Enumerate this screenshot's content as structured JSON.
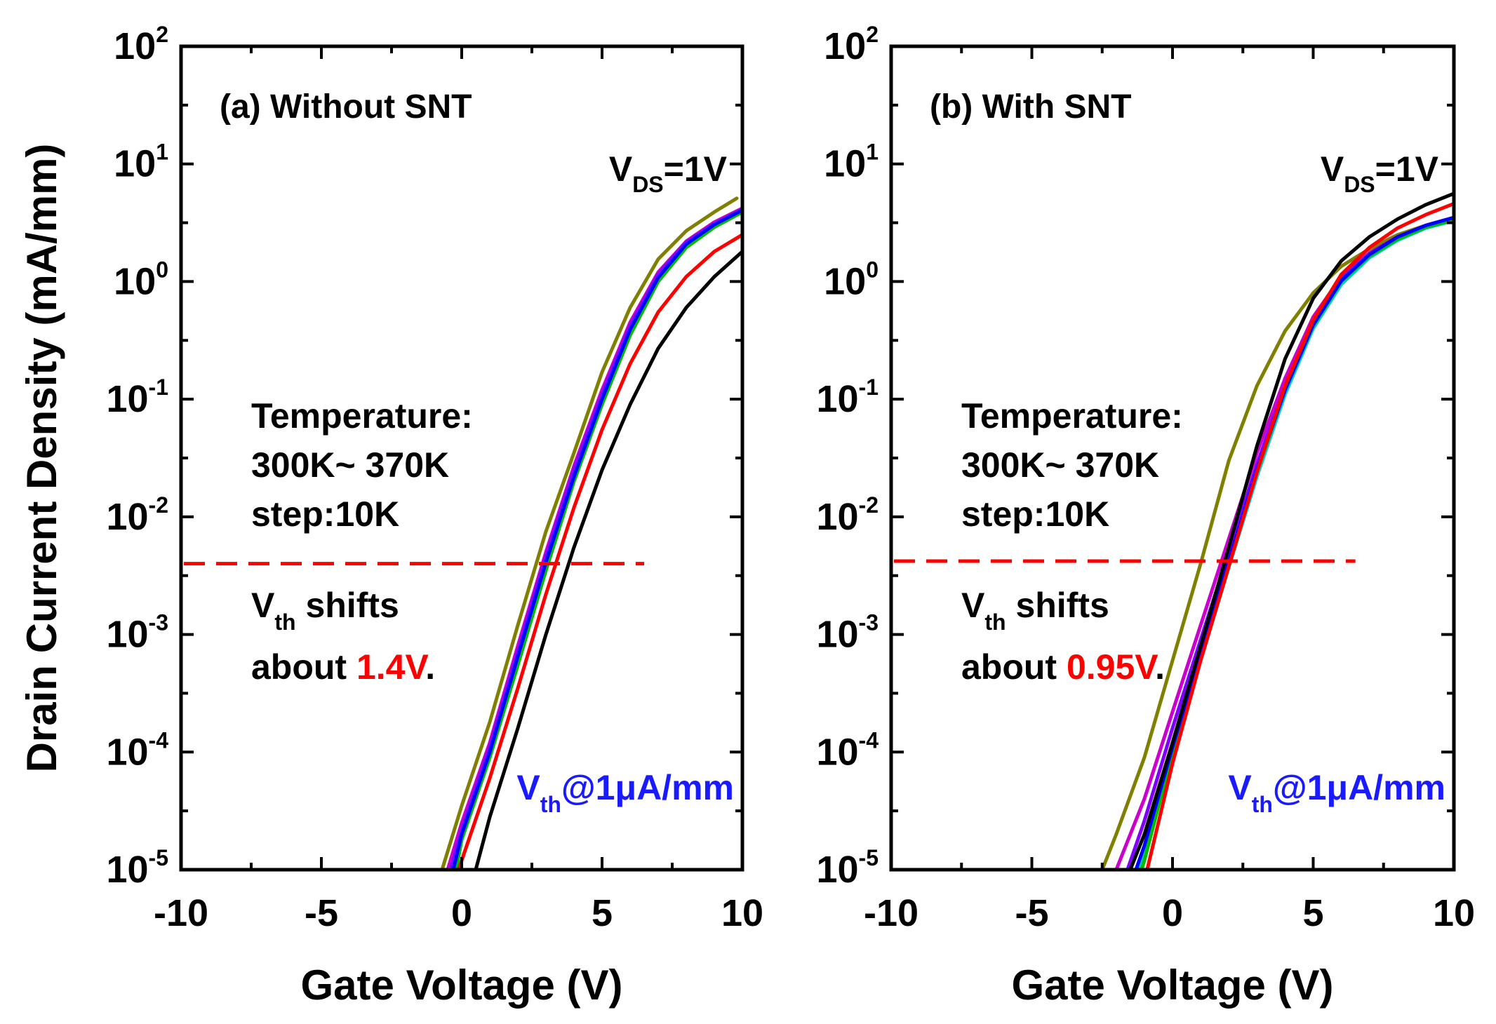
{
  "chart_data": [
    {
      "type": "line",
      "panel": "a",
      "title": "(a) Without SNT",
      "xlabel": "Gate Voltage (V)",
      "ylabel": "Drain Current Density (mA/mm)",
      "xlim": [
        -10,
        10
      ],
      "ylim": [
        1e-05,
        100
      ],
      "yscale": "log",
      "x_ticks": [
        -10,
        -5,
        0,
        5,
        10
      ],
      "y_ticks": [
        {
          "base": "10",
          "exp": "2",
          "value": 100
        },
        {
          "base": "10",
          "exp": "1",
          "value": 10
        },
        {
          "base": "10",
          "exp": "0",
          "value": 1
        },
        {
          "base": "10",
          "exp": "-1",
          "value": 0.1
        },
        {
          "base": "10",
          "exp": "-2",
          "value": 0.01
        },
        {
          "base": "10",
          "exp": "-3",
          "value": 0.001
        },
        {
          "base": "10",
          "exp": "-4",
          "value": 0.0001
        },
        {
          "base": "10",
          "exp": "-5",
          "value": 1e-05
        }
      ],
      "bias_label": {
        "main": "V",
        "sub": "DS",
        "rest": "=1V"
      },
      "temperature_text": [
        "Temperature:",
        "300K~ 370K",
        "step:10K"
      ],
      "vth_shift_text": {
        "v": "V",
        "sub": "th",
        "rest": " shifts",
        "about": "about ",
        "value": "1.4V",
        "end": "."
      },
      "vth_def_text": {
        "v": "V",
        "sub": "th",
        "rest": "@1μA/mm"
      },
      "threshold_line": {
        "y": 0.004,
        "x_range": [
          -10,
          6.5
        ],
        "color": "#ff0000"
      },
      "colors": {
        "annotation_value": "#ff0000",
        "vth_def": "#1a1aff"
      },
      "series": [
        {
          "color": "#808000",
          "x": [
            -0.7,
            0,
            1,
            2,
            3,
            4,
            5,
            6,
            7,
            8,
            9,
            9.8
          ],
          "y": [
            1e-05,
            3.5e-05,
            0.00018,
            0.0012,
            0.0075,
            0.035,
            0.17,
            0.6,
            1.55,
            2.7,
            3.9,
            5.1
          ]
        },
        {
          "color": "#cc00cc",
          "x": [
            -0.5,
            0,
            1,
            2,
            3,
            4,
            5,
            6,
            7,
            8,
            9,
            10
          ],
          "y": [
            1e-05,
            2.5e-05,
            0.00012,
            0.0008,
            0.005,
            0.027,
            0.12,
            0.45,
            1.2,
            2.2,
            3.2,
            4.2
          ]
        },
        {
          "color": "#8000ff",
          "x": [
            -0.4,
            0,
            1,
            2,
            3,
            4,
            5,
            6,
            7,
            8,
            9,
            10
          ],
          "y": [
            1e-05,
            2.2e-05,
            0.00011,
            0.00072,
            0.0046,
            0.025,
            0.11,
            0.42,
            1.15,
            2.15,
            3.1,
            4.1
          ]
        },
        {
          "color": "#00cccc",
          "x": [
            -0.3,
            0,
            1,
            2,
            3,
            4,
            5,
            6,
            7,
            8,
            9,
            10
          ],
          "y": [
            1e-05,
            2e-05,
            9.5e-05,
            0.0006,
            0.0038,
            0.021,
            0.095,
            0.37,
            1.05,
            2.05,
            3.0,
            4.0
          ]
        },
        {
          "color": "#00bb00",
          "x": [
            -0.2,
            0,
            1,
            2,
            3,
            4,
            5,
            6,
            7,
            8,
            9,
            10
          ],
          "y": [
            1e-05,
            1.8e-05,
            9e-05,
            0.00055,
            0.0035,
            0.02,
            0.09,
            0.35,
            1.0,
            1.95,
            2.9,
            3.9
          ]
        },
        {
          "color": "#0000ff",
          "x": [
            -0.3,
            0,
            1,
            2,
            3,
            4,
            5,
            6,
            7,
            8,
            9,
            10
          ],
          "y": [
            1e-05,
            2e-05,
            0.0001,
            0.00065,
            0.0041,
            0.022,
            0.1,
            0.39,
            1.08,
            2.08,
            3.05,
            4.05
          ]
        },
        {
          "color": "#ff0000",
          "x": [
            -0.1,
            0,
            1,
            2,
            3,
            4,
            5,
            6,
            7,
            8,
            9,
            10
          ],
          "y": [
            1e-05,
            1.2e-05,
            6e-05,
            0.00035,
            0.0022,
            0.012,
            0.055,
            0.2,
            0.55,
            1.1,
            1.8,
            2.5
          ]
        },
        {
          "color": "#000000",
          "x": [
            0.5,
            1,
            2,
            3,
            4,
            5,
            6,
            7,
            8,
            9,
            10
          ],
          "y": [
            1e-05,
            2.8e-05,
            0.00016,
            0.001,
            0.0055,
            0.025,
            0.09,
            0.27,
            0.6,
            1.1,
            1.8
          ]
        }
      ]
    },
    {
      "type": "line",
      "panel": "b",
      "title": "(b) With SNT",
      "xlabel": "Gate Voltage (V)",
      "ylabel": "",
      "xlim": [
        -10,
        10
      ],
      "ylim": [
        1e-05,
        100
      ],
      "yscale": "log",
      "x_ticks": [
        -10,
        -5,
        0,
        5,
        10
      ],
      "y_ticks": [
        {
          "base": "10",
          "exp": "2",
          "value": 100
        },
        {
          "base": "10",
          "exp": "1",
          "value": 10
        },
        {
          "base": "10",
          "exp": "0",
          "value": 1
        },
        {
          "base": "10",
          "exp": "-1",
          "value": 0.1
        },
        {
          "base": "10",
          "exp": "-2",
          "value": 0.01
        },
        {
          "base": "10",
          "exp": "-3",
          "value": 0.001
        },
        {
          "base": "10",
          "exp": "-4",
          "value": 0.0001
        },
        {
          "base": "10",
          "exp": "-5",
          "value": 1e-05
        }
      ],
      "bias_label": {
        "main": "V",
        "sub": "DS",
        "rest": "=1V"
      },
      "temperature_text": [
        "Temperature:",
        "300K~ 370K",
        "step:10K"
      ],
      "vth_shift_text": {
        "v": "V",
        "sub": "th",
        "rest": " shifts",
        "about": "about ",
        "value": "0.95V",
        "end": "."
      },
      "vth_def_text": {
        "v": "V",
        "sub": "th",
        "rest": "@1μA/mm"
      },
      "threshold_line": {
        "y": 0.0042,
        "x_range": [
          -10,
          6.5
        ],
        "color": "#ff0000"
      },
      "colors": {
        "annotation_value": "#ff0000",
        "vth_def": "#1a1aff"
      },
      "series": [
        {
          "color": "#808000",
          "x": [
            -2.5,
            -2,
            -1,
            0,
            1,
            2,
            3,
            4,
            5,
            6,
            7,
            8,
            9,
            10
          ],
          "y": [
            1e-05,
            2e-05,
            9e-05,
            0.0006,
            0.004,
            0.03,
            0.13,
            0.38,
            0.8,
            1.35,
            1.9,
            2.5,
            3.0,
            3.5
          ]
        },
        {
          "color": "#cc00cc",
          "x": [
            -2,
            -1,
            0,
            1,
            2,
            3,
            4,
            5,
            6,
            7,
            8,
            9,
            10
          ],
          "y": [
            1e-05,
            4e-05,
            0.00022,
            0.0012,
            0.0065,
            0.035,
            0.15,
            0.5,
            1.1,
            1.75,
            2.4,
            3.0,
            3.5
          ]
        },
        {
          "color": "#8000ff",
          "x": [
            -1.6,
            -1,
            0,
            1,
            2,
            3,
            4,
            5,
            6,
            7,
            8,
            9,
            10
          ],
          "y": [
            1e-05,
            2.6e-05,
            0.00016,
            0.0009,
            0.005,
            0.028,
            0.13,
            0.46,
            1.05,
            1.7,
            2.35,
            2.95,
            3.4
          ]
        },
        {
          "color": "#00cccc",
          "x": [
            -1.2,
            -1,
            0,
            1,
            2,
            3,
            4,
            5,
            6,
            7,
            8,
            9,
            10
          ],
          "y": [
            1e-05,
            1.4e-05,
            9e-05,
            0.0006,
            0.0037,
            0.022,
            0.11,
            0.4,
            0.95,
            1.6,
            2.25,
            2.85,
            3.3
          ]
        },
        {
          "color": "#00bb00",
          "x": [
            -1.1,
            -1,
            0,
            1,
            2,
            3,
            4,
            5,
            6,
            7,
            8,
            9,
            10
          ],
          "y": [
            1e-05,
            1.2e-05,
            0.0001,
            0.00065,
            0.004,
            0.024,
            0.12,
            0.42,
            1.0,
            1.65,
            2.3,
            2.9,
            3.35
          ]
        },
        {
          "color": "#0000ff",
          "x": [
            -1.3,
            -1,
            0,
            1,
            2,
            3,
            4,
            5,
            6,
            7,
            8,
            9,
            10
          ],
          "y": [
            1e-05,
            1.6e-05,
            0.00011,
            0.0007,
            0.0042,
            0.025,
            0.12,
            0.43,
            1.02,
            1.7,
            2.4,
            3.0,
            3.5
          ]
        },
        {
          "color": "#ff0000",
          "x": [
            -0.9,
            0,
            1,
            2,
            3,
            4,
            5,
            6,
            7,
            8,
            9,
            10
          ],
          "y": [
            1e-05,
            8e-05,
            0.0006,
            0.0038,
            0.024,
            0.13,
            0.47,
            1.15,
            1.95,
            2.85,
            3.7,
            4.6
          ]
        },
        {
          "color": "#000000",
          "x": [
            -1.5,
            -1,
            0,
            1,
            2,
            3,
            4,
            5,
            6,
            7,
            8,
            9,
            10
          ],
          "y": [
            1e-05,
            2e-05,
            0.00012,
            0.0008,
            0.0055,
            0.04,
            0.22,
            0.72,
            1.5,
            2.4,
            3.4,
            4.5,
            5.6
          ]
        }
      ]
    }
  ]
}
